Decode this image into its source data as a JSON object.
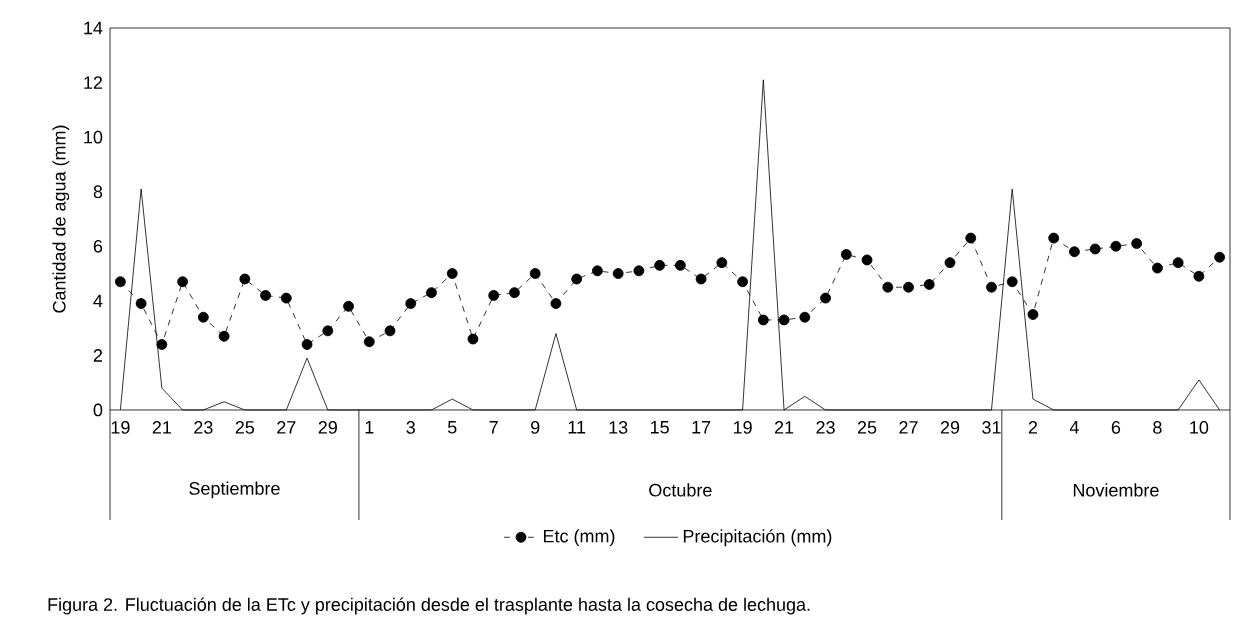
{
  "chart_data": {
    "type": "line",
    "ylabel": "Cantidad de agua (mm)",
    "categories": [
      "19",
      null,
      "21",
      null,
      "23",
      null,
      "25",
      null,
      "27",
      null,
      "29",
      null,
      "1",
      null,
      "3",
      null,
      "5",
      null,
      "7",
      null,
      "9",
      null,
      "11",
      null,
      "13",
      null,
      "15",
      null,
      "17",
      null,
      "19",
      null,
      "21",
      null,
      "23",
      null,
      "25",
      null,
      "27",
      null,
      "29",
      null,
      "31",
      null,
      "2",
      null,
      "4",
      null,
      "6",
      null,
      "8",
      null,
      "10",
      null
    ],
    "series": [
      {
        "name": "Etc (mm)",
        "color": "#000000",
        "marker": "circle",
        "line_style": "dashed",
        "values": [
          4.7,
          3.9,
          2.4,
          4.7,
          3.4,
          2.7,
          4.8,
          4.2,
          4.1,
          2.4,
          2.9,
          3.8,
          2.5,
          2.9,
          3.9,
          4.3,
          5.0,
          2.6,
          4.2,
          4.3,
          5.0,
          3.9,
          4.8,
          5.1,
          5.0,
          5.1,
          5.3,
          5.3,
          4.8,
          5.4,
          4.7,
          3.3,
          3.3,
          3.4,
          4.1,
          5.7,
          5.5,
          4.5,
          4.5,
          4.6,
          5.4,
          6.3,
          4.5,
          4.7,
          3.5,
          6.3,
          5.8,
          5.9,
          6.0,
          6.1,
          5.2,
          5.4,
          4.9,
          5.6
        ]
      },
      {
        "name": "Precipitación (mm)",
        "color": "#000000",
        "marker": "none",
        "line_style": "solid",
        "values": [
          0,
          8.1,
          0.8,
          0,
          0,
          0.3,
          0,
          0,
          0,
          1.9,
          0,
          0,
          0,
          0,
          0,
          0,
          0.4,
          0,
          0,
          0,
          0,
          2.8,
          0,
          0,
          0,
          0,
          0,
          0,
          0,
          0,
          0,
          12.1,
          0,
          0.5,
          0,
          0,
          0,
          0,
          0,
          0,
          0,
          0,
          0,
          8.1,
          0.4,
          0,
          0,
          0,
          0,
          0,
          0,
          0,
          1.1,
          0
        ]
      }
    ],
    "ylim": [
      0,
      14
    ],
    "yticks": [
      0,
      2,
      4,
      6,
      8,
      10,
      12,
      14
    ],
    "grid": false,
    "legend": "bottom",
    "annotations": [
      "Septiembre",
      "Octubre",
      "Noviembre",
      "Figura 2. Fluctuación de la ETc y precipitación desde el trasplante hasta la cosecha de lechuga."
    ]
  }
}
